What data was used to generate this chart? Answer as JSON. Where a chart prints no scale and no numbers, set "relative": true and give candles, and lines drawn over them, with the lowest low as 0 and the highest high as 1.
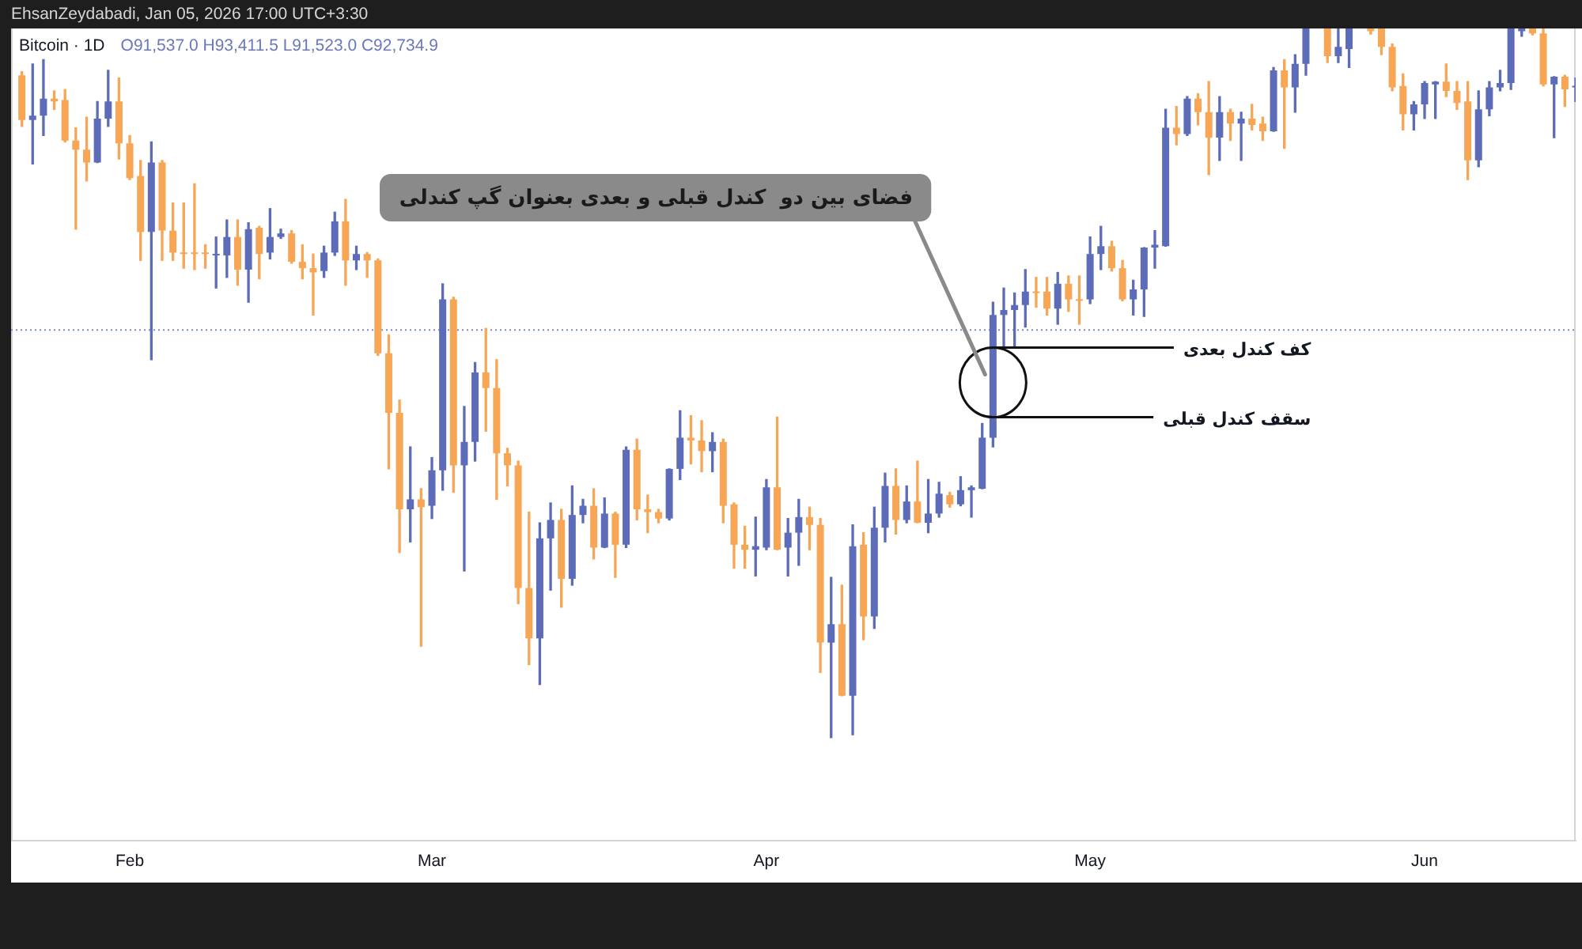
{
  "chart_data": {
    "type": "candlestick",
    "title": "Bitcoin · 1D",
    "subtitle": "O91,537.0 H93,411.5 L91,523.0 C92,734.9",
    "annotations": [
      "EhsanZeydabadi, Jan 05, 2026 17:00 UTC+3:30",
      {
        "text": "فضای بین دو  کندل قبلی و بعدی بعنوان گپ کندلی",
        "x": "--04-22",
        "y": 0.501
      },
      {
        "text": "کف کندل بعدی",
        "x": "--04-22",
        "y": 0.55
      },
      {
        "text": "سقف کندل قبلی",
        "x": "--04-22",
        "y": 0.452
      }
    ],
    "relative": true,
    "xlim": [
      "--01-21",
      "--06-15"
    ],
    "xticks": [
      {
        "value": "--02-01",
        "label": "Feb"
      },
      {
        "value": "--03-01",
        "label": "Mar"
      },
      {
        "value": "--04-01",
        "label": "Apr"
      },
      {
        "value": "--05-01",
        "label": "May"
      },
      {
        "value": "--06-01",
        "label": "Jun"
      }
    ],
    "ref_lines": [
      {
        "axis": "y",
        "value": 0.575,
        "color": "#7d89c6",
        "line_style": "dotted"
      }
    ],
    "x": [
      "--01-22",
      "--01-23",
      "--01-24",
      "--01-25",
      "--01-26",
      "--01-27",
      "--01-28",
      "--01-29",
      "--01-30",
      "--01-31",
      "--02-01",
      "--02-02",
      "--02-03",
      "--02-04",
      "--02-05",
      "--02-06",
      "--02-07",
      "--02-08",
      "--02-09",
      "--02-10",
      "--02-11",
      "--02-12",
      "--02-13",
      "--02-14",
      "--02-15",
      "--02-16",
      "--02-17",
      "--02-18",
      "--02-19",
      "--02-20",
      "--02-21",
      "--02-22",
      "--02-23",
      "--02-24",
      "--02-25",
      "--02-26",
      "--02-27",
      "--02-28",
      "--03-01",
      "--03-02",
      "--03-03",
      "--03-04",
      "--03-05",
      "--03-06",
      "--03-07",
      "--03-08",
      "--03-09",
      "--03-10",
      "--03-11",
      "--03-12",
      "--03-13",
      "--03-14",
      "--03-15",
      "--03-16",
      "--03-17",
      "--03-18",
      "--03-19",
      "--03-20",
      "--03-21",
      "--03-22",
      "--03-23",
      "--03-24",
      "--03-25",
      "--03-26",
      "--03-27",
      "--03-28",
      "--03-29",
      "--03-30",
      "--03-31",
      "--04-01",
      "--04-02",
      "--04-03",
      "--04-04",
      "--04-05",
      "--04-06",
      "--04-07",
      "--04-08",
      "--04-09",
      "--04-10",
      "--04-11",
      "--04-12",
      "--04-13",
      "--04-14",
      "--04-15",
      "--04-16",
      "--04-17",
      "--04-18",
      "--04-19",
      "--04-20",
      "--04-21",
      "--04-22",
      "--04-23",
      "--04-24",
      "--04-25",
      "--04-26",
      "--04-27",
      "--04-28",
      "--04-29",
      "--04-30",
      "--05-01",
      "--05-02",
      "--05-03",
      "--05-04",
      "--05-05",
      "--05-06",
      "--05-07",
      "--05-08",
      "--05-09",
      "--05-10",
      "--05-11",
      "--05-12",
      "--05-13",
      "--05-14",
      "--05-15",
      "--05-16",
      "--05-17",
      "--05-18",
      "--05-19",
      "--05-20",
      "--05-21",
      "--05-23",
      "--05-24",
      "--05-25",
      "--05-27",
      "--05-28",
      "--05-29",
      "--05-30",
      "--05-31",
      "--06-01",
      "--06-02",
      "--06-03",
      "--06-04",
      "--06-05",
      "--06-06",
      "--06-07",
      "--06-08",
      "--06-09",
      "--06-10",
      "--06-11",
      "--06-12",
      "--06-13",
      "--06-14",
      "--06-15"
    ],
    "ohlc": [
      [
        0.934,
        0.939,
        0.862,
        0.871
      ],
      [
        0.871,
        0.95,
        0.809,
        0.877
      ],
      [
        0.877,
        0.956,
        0.849,
        0.901
      ],
      [
        0.901,
        0.912,
        0.886,
        0.897
      ],
      [
        0.899,
        0.914,
        0.84,
        0.842
      ],
      [
        0.842,
        0.86,
        0.717,
        0.829
      ],
      [
        0.829,
        0.875,
        0.785,
        0.811
      ],
      [
        0.811,
        0.897,
        0.811,
        0.873
      ],
      [
        0.873,
        0.941,
        0.862,
        0.897
      ],
      [
        0.897,
        0.93,
        0.816,
        0.838
      ],
      [
        0.838,
        0.849,
        0.787,
        0.789
      ],
      [
        0.792,
        0.814,
        0.673,
        0.713
      ],
      [
        0.713,
        0.84,
        0.533,
        0.811
      ],
      [
        0.811,
        0.814,
        0.673,
        0.715
      ],
      [
        0.715,
        0.754,
        0.673,
        0.684
      ],
      [
        0.684,
        0.754,
        0.662,
        0.682
      ],
      [
        0.684,
        0.781,
        0.66,
        0.682
      ],
      [
        0.684,
        0.695,
        0.662,
        0.682
      ],
      [
        0.68,
        0.706,
        0.634,
        0.682
      ],
      [
        0.68,
        0.73,
        0.649,
        0.706
      ],
      [
        0.706,
        0.73,
        0.638,
        0.66
      ],
      [
        0.66,
        0.726,
        0.614,
        0.717
      ],
      [
        0.719,
        0.721,
        0.647,
        0.682
      ],
      [
        0.684,
        0.746,
        0.675,
        0.706
      ],
      [
        0.706,
        0.717,
        0.704,
        0.711
      ],
      [
        0.711,
        0.715,
        0.669,
        0.671
      ],
      [
        0.671,
        0.695,
        0.647,
        0.662
      ],
      [
        0.662,
        0.682,
        0.596,
        0.656
      ],
      [
        0.658,
        0.693,
        0.649,
        0.684
      ],
      [
        0.684,
        0.741,
        0.68,
        0.728
      ],
      [
        0.728,
        0.759,
        0.638,
        0.673
      ],
      [
        0.673,
        0.693,
        0.66,
        0.682
      ],
      [
        0.682,
        0.684,
        0.649,
        0.673
      ],
      [
        0.673,
        0.675,
        0.539,
        0.542
      ],
      [
        0.542,
        0.568,
        0.379,
        0.458
      ],
      [
        0.458,
        0.476,
        0.261,
        0.322
      ],
      [
        0.322,
        0.41,
        0.276,
        0.336
      ],
      [
        0.336,
        0.351,
        0.129,
        0.325
      ],
      [
        0.327,
        0.395,
        0.309,
        0.377
      ],
      [
        0.377,
        0.64,
        0.349,
        0.618
      ],
      [
        0.618,
        0.621,
        0.346,
        0.384
      ],
      [
        0.384,
        0.467,
        0.235,
        0.417
      ],
      [
        0.417,
        0.529,
        0.39,
        0.515
      ],
      [
        0.515,
        0.577,
        0.432,
        0.493
      ],
      [
        0.493,
        0.533,
        0.336,
        0.401
      ],
      [
        0.401,
        0.408,
        0.355,
        0.384
      ],
      [
        0.384,
        0.39,
        0.189,
        0.211
      ],
      [
        0.211,
        0.318,
        0.103,
        0.14
      ],
      [
        0.14,
        0.303,
        0.075,
        0.281
      ],
      [
        0.281,
        0.331,
        0.208,
        0.307
      ],
      [
        0.307,
        0.322,
        0.184,
        0.224
      ],
      [
        0.224,
        0.355,
        0.215,
        0.314
      ],
      [
        0.314,
        0.336,
        0.303,
        0.327
      ],
      [
        0.327,
        0.351,
        0.252,
        0.268
      ],
      [
        0.268,
        0.338,
        0.268,
        0.316
      ],
      [
        0.316,
        0.318,
        0.226,
        0.272
      ],
      [
        0.272,
        0.41,
        0.268,
        0.406
      ],
      [
        0.406,
        0.421,
        0.307,
        0.322
      ],
      [
        0.322,
        0.342,
        0.289,
        0.318
      ],
      [
        0.318,
        0.322,
        0.303,
        0.309
      ],
      [
        0.309,
        0.379,
        0.307,
        0.379
      ],
      [
        0.379,
        0.461,
        0.364,
        0.423
      ],
      [
        0.423,
        0.454,
        0.386,
        0.419
      ],
      [
        0.419,
        0.447,
        0.375,
        0.404
      ],
      [
        0.404,
        0.43,
        0.375,
        0.417
      ],
      [
        0.417,
        0.421,
        0.303,
        0.327
      ],
      [
        0.329,
        0.331,
        0.239,
        0.272
      ],
      [
        0.272,
        0.298,
        0.239,
        0.265
      ],
      [
        0.265,
        0.311,
        0.228,
        0.27
      ],
      [
        0.268,
        0.364,
        0.265,
        0.353
      ],
      [
        0.353,
        0.452,
        0.265,
        0.265
      ],
      [
        0.268,
        0.309,
        0.228,
        0.289
      ],
      [
        0.289,
        0.336,
        0.243,
        0.311
      ],
      [
        0.311,
        0.325,
        0.265,
        0.3
      ],
      [
        0.3,
        0.309,
        0.092,
        0.134
      ],
      [
        0.134,
        0.226,
        0.0,
        0.16
      ],
      [
        0.16,
        0.215,
        0.059,
        0.059
      ],
      [
        0.059,
        0.3,
        0.004,
        0.27
      ],
      [
        0.272,
        0.289,
        0.138,
        0.171
      ],
      [
        0.171,
        0.325,
        0.154,
        0.296
      ],
      [
        0.296,
        0.373,
        0.276,
        0.355
      ],
      [
        0.355,
        0.379,
        0.287,
        0.307
      ],
      [
        0.307,
        0.355,
        0.303,
        0.333
      ],
      [
        0.333,
        0.39,
        0.303,
        0.303
      ],
      [
        0.303,
        0.364,
        0.289,
        0.316
      ],
      [
        0.316,
        0.36,
        0.311,
        0.344
      ],
      [
        0.342,
        0.346,
        0.325,
        0.329
      ],
      [
        0.329,
        0.368,
        0.327,
        0.349
      ],
      [
        0.349,
        0.355,
        0.311,
        0.353
      ],
      [
        0.351,
        0.443,
        0.351,
        0.423
      ],
      [
        0.423,
        0.614,
        0.41,
        0.596
      ],
      [
        0.596,
        0.634,
        0.55,
        0.603
      ],
      [
        0.603,
        0.627,
        0.55,
        0.61
      ],
      [
        0.61,
        0.66,
        0.579,
        0.629
      ],
      [
        0.629,
        0.649,
        0.607,
        0.627
      ],
      [
        0.629,
        0.649,
        0.596,
        0.605
      ],
      [
        0.605,
        0.656,
        0.583,
        0.64
      ],
      [
        0.64,
        0.651,
        0.601,
        0.618
      ],
      [
        0.618,
        0.651,
        0.583,
        0.616
      ],
      [
        0.618,
        0.706,
        0.612,
        0.682
      ],
      [
        0.682,
        0.721,
        0.66,
        0.693
      ],
      [
        0.693,
        0.7,
        0.658,
        0.662
      ],
      [
        0.662,
        0.673,
        0.616,
        0.618
      ],
      [
        0.618,
        0.645,
        0.596,
        0.632
      ],
      [
        0.632,
        0.691,
        0.594,
        0.691
      ],
      [
        0.691,
        0.715,
        0.662,
        0.695
      ],
      [
        0.693,
        0.886,
        0.693,
        0.86
      ],
      [
        0.86,
        0.89,
        0.836,
        0.851
      ],
      [
        0.851,
        0.904,
        0.849,
        0.901
      ],
      [
        0.901,
        0.908,
        0.864,
        0.882
      ],
      [
        0.882,
        0.925,
        0.794,
        0.846
      ],
      [
        0.846,
        0.904,
        0.814,
        0.882
      ],
      [
        0.882,
        0.886,
        0.842,
        0.866
      ],
      [
        0.866,
        0.882,
        0.814,
        0.873
      ],
      [
        0.873,
        0.893,
        0.857,
        0.864
      ],
      [
        0.866,
        0.875,
        0.842,
        0.855
      ],
      [
        0.855,
        0.945,
        0.855,
        0.941
      ],
      [
        0.941,
        0.956,
        0.831,
        0.917
      ],
      [
        0.917,
        0.963,
        0.882,
        0.95
      ],
      [
        0.95,
        1,
        0.934,
        1
      ],
      [
        1,
        1,
        0.952,
        0.961
      ],
      [
        0.961,
        1,
        0.952,
        0.974
      ],
      [
        0.971,
        1,
        0.945,
        1
      ],
      [
        1,
        1,
        0.992,
        0.996
      ],
      [
        1,
        1,
        0.963,
        0.974
      ],
      [
        0.974,
        0.978,
        0.912,
        0.917
      ],
      [
        0.919,
        0.936,
        0.857,
        0.879
      ],
      [
        0.879,
        0.897,
        0.857,
        0.893
      ],
      [
        0.893,
        0.925,
        0.873,
        0.923
      ],
      [
        0.921,
        0.925,
        0.873,
        0.925
      ],
      [
        0.925,
        0.95,
        0.904,
        0.912
      ],
      [
        0.912,
        0.925,
        0.886,
        0.895
      ],
      [
        0.897,
        0.925,
        0.787,
        0.814
      ],
      [
        0.814,
        0.912,
        0.805,
        0.886
      ],
      [
        0.886,
        0.925,
        0.877,
        0.917
      ],
      [
        0.917,
        0.941,
        0.912,
        0.923
      ],
      [
        0.923,
        1,
        0.914,
        1
      ],
      [
        0.996,
        1,
        0.989,
        1
      ],
      [
        1,
        1,
        0.991,
        0.993
      ],
      [
        0.993,
        1,
        0.919,
        0.921
      ],
      [
        0.921,
        0.932,
        0.846,
        0.932
      ],
      [
        0.932,
        0.934,
        0.89,
        0.914
      ],
      [
        0.917,
        0.93,
        0.897,
        0.919
      ]
    ],
    "colors": [
      "#f6a655",
      "#5d6cb8",
      "#5d6cb8",
      "#f6a655",
      "#f6a655",
      "#f6a655",
      "#f6a655",
      "#5d6cb8",
      "#5d6cb8",
      "#f6a655",
      "#f6a655",
      "#f6a655",
      "#5d6cb8",
      "#f6a655",
      "#f6a655",
      "#f6a655",
      "#f6a655",
      "#f6a655",
      "#5d6cb8",
      "#5d6cb8",
      "#f6a655",
      "#5d6cb8",
      "#f6a655",
      "#5d6cb8",
      "#5d6cb8",
      "#f6a655",
      "#f6a655",
      "#f6a655",
      "#5d6cb8",
      "#5d6cb8",
      "#f6a655",
      "#5d6cb8",
      "#f6a655",
      "#f6a655",
      "#f6a655",
      "#f6a655",
      "#5d6cb8",
      "#f6a655",
      "#5d6cb8",
      "#5d6cb8",
      "#f6a655",
      "#5d6cb8",
      "#5d6cb8",
      "#f6a655",
      "#f6a655",
      "#f6a655",
      "#f6a655",
      "#f6a655",
      "#5d6cb8",
      "#5d6cb8",
      "#f6a655",
      "#5d6cb8",
      "#5d6cb8",
      "#f6a655",
      "#5d6cb8",
      "#f6a655",
      "#5d6cb8",
      "#f6a655",
      "#f6a655",
      "#f6a655",
      "#5d6cb8",
      "#5d6cb8",
      "#f6a655",
      "#f6a655",
      "#5d6cb8",
      "#f6a655",
      "#f6a655",
      "#f6a655",
      "#5d6cb8",
      "#5d6cb8",
      "#f6a655",
      "#5d6cb8",
      "#5d6cb8",
      "#f6a655",
      "#f6a655",
      "#5d6cb8",
      "#f6a655",
      "#5d6cb8",
      "#f6a655",
      "#5d6cb8",
      "#5d6cb8",
      "#f6a655",
      "#5d6cb8",
      "#f6a655",
      "#5d6cb8",
      "#5d6cb8",
      "#f6a655",
      "#5d6cb8",
      "#5d6cb8",
      "#5d6cb8",
      "#5d6cb8",
      "#5d6cb8",
      "#5d6cb8",
      "#5d6cb8",
      "#f6a655",
      "#f6a655",
      "#5d6cb8",
      "#f6a655",
      "#f6a655",
      "#5d6cb8",
      "#5d6cb8",
      "#f6a655",
      "#f6a655",
      "#5d6cb8",
      "#5d6cb8",
      "#5d6cb8",
      "#5d6cb8",
      "#f6a655",
      "#5d6cb8",
      "#f6a655",
      "#f6a655",
      "#5d6cb8",
      "#f6a655",
      "#5d6cb8",
      "#f6a655",
      "#f6a655",
      "#5d6cb8",
      "#f6a655",
      "#5d6cb8",
      "#5d6cb8",
      "#f6a655",
      "#5d6cb8",
      "#5d6cb8",
      "#f6a655",
      "#f6a655",
      "#f6a655",
      "#f6a655",
      "#5d6cb8",
      "#5d6cb8",
      "#5d6cb8",
      "#f6a655",
      "#f6a655",
      "#f6a655",
      "#5d6cb8",
      "#5d6cb8",
      "#5d6cb8",
      "#5d6cb8",
      "#5d6cb8",
      "#f6a655",
      "#f6a655",
      "#5d6cb8",
      "#f6a655",
      "#5d6cb8"
    ]
  }
}
